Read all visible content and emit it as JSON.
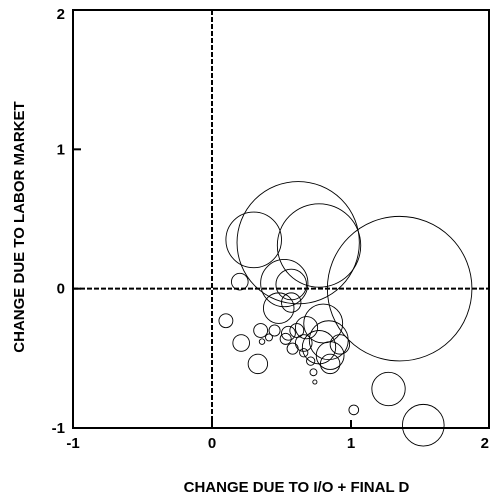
{
  "chart_data": {
    "type": "scatter",
    "title": "",
    "xlabel": "CHANGE DUE TO I/O + FINAL D",
    "ylabel": "CHANGE DUE TO LABOR MARKET",
    "xlim": [
      -1,
      2
    ],
    "ylim": [
      -1,
      2
    ],
    "x_ticks": [
      "-1",
      "0",
      "1",
      "2"
    ],
    "y_ticks": [
      "2",
      "1",
      "0",
      "-1"
    ],
    "reference_lines": {
      "x": 0,
      "y": 0,
      "style": "dashed"
    },
    "bubble_size_unit": "relative radius",
    "points": [
      {
        "x": 0.62,
        "y": 0.33,
        "r": 0.44
      },
      {
        "x": 1.35,
        "y": 0.0,
        "r": 0.52
      },
      {
        "x": 0.77,
        "y": 0.31,
        "r": 0.3
      },
      {
        "x": 0.3,
        "y": 0.35,
        "r": 0.2
      },
      {
        "x": 0.52,
        "y": 0.04,
        "r": 0.17
      },
      {
        "x": 0.57,
        "y": 0.03,
        "r": 0.11
      },
      {
        "x": 0.48,
        "y": -0.14,
        "r": 0.11
      },
      {
        "x": 0.57,
        "y": -0.1,
        "r": 0.07
      },
      {
        "x": 0.2,
        "y": 0.05,
        "r": 0.06
      },
      {
        "x": 0.8,
        "y": -0.25,
        "r": 0.14
      },
      {
        "x": 0.84,
        "y": -0.37,
        "r": 0.14
      },
      {
        "x": 0.77,
        "y": -0.42,
        "r": 0.12
      },
      {
        "x": 0.85,
        "y": -0.48,
        "r": 0.1
      },
      {
        "x": 0.85,
        "y": -0.54,
        "r": 0.07
      },
      {
        "x": 0.92,
        "y": -0.4,
        "r": 0.07
      },
      {
        "x": 0.68,
        "y": -0.28,
        "r": 0.08
      },
      {
        "x": 0.66,
        "y": -0.39,
        "r": 0.06
      },
      {
        "x": 0.61,
        "y": -0.3,
        "r": 0.05
      },
      {
        "x": 0.55,
        "y": -0.32,
        "r": 0.05
      },
      {
        "x": 0.53,
        "y": -0.36,
        "r": 0.04
      },
      {
        "x": 0.58,
        "y": -0.43,
        "r": 0.04
      },
      {
        "x": 0.66,
        "y": -0.46,
        "r": 0.03
      },
      {
        "x": 0.71,
        "y": -0.52,
        "r": 0.03
      },
      {
        "x": 0.73,
        "y": -0.6,
        "r": 0.025
      },
      {
        "x": 0.74,
        "y": -0.67,
        "r": 0.015
      },
      {
        "x": 0.45,
        "y": -0.3,
        "r": 0.04
      },
      {
        "x": 0.41,
        "y": -0.35,
        "r": 0.025
      },
      {
        "x": 0.35,
        "y": -0.3,
        "r": 0.05
      },
      {
        "x": 0.21,
        "y": -0.39,
        "r": 0.06
      },
      {
        "x": 0.33,
        "y": -0.54,
        "r": 0.07
      },
      {
        "x": 0.1,
        "y": -0.23,
        "r": 0.05
      },
      {
        "x": 0.36,
        "y": -0.38,
        "r": 0.02
      },
      {
        "x": 1.27,
        "y": -0.72,
        "r": 0.12
      },
      {
        "x": 1.52,
        "y": -0.98,
        "r": 0.15
      },
      {
        "x": 1.02,
        "y": -0.87,
        "r": 0.035
      }
    ]
  }
}
